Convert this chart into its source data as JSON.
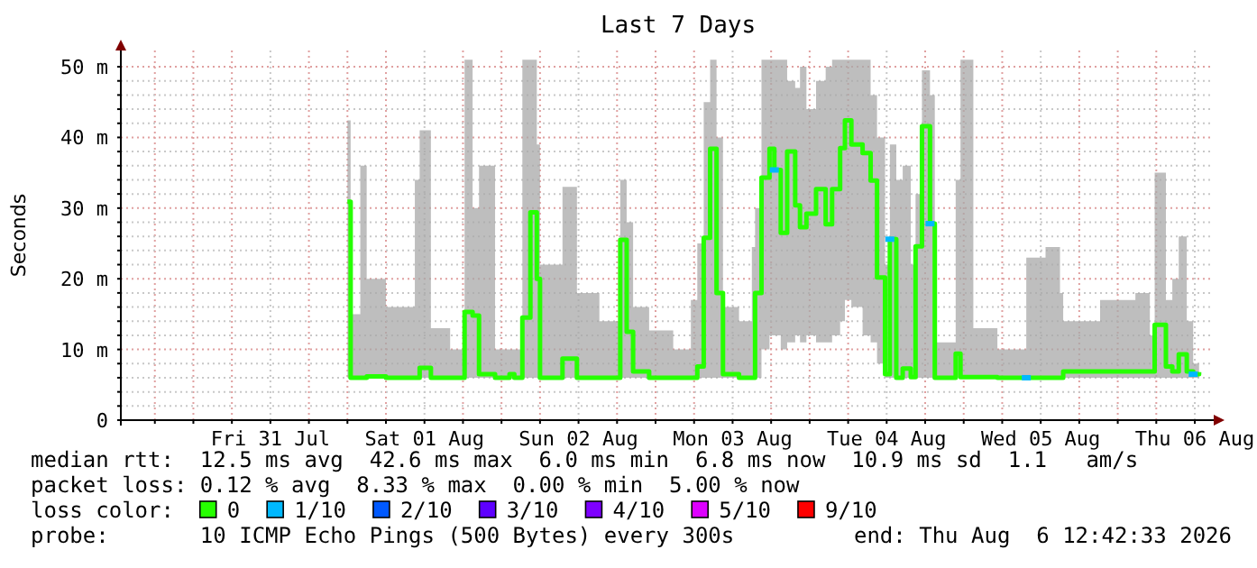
{
  "chart_data": {
    "type": "step",
    "title": "Last 7 Days",
    "ylabel": "Seconds",
    "legend_title": "loss color:",
    "legend": "bottom",
    "grid": true,
    "marker": "none",
    "xlim": [
      "2026-07-30T12:42",
      "2026-08-06T12:42"
    ],
    "xticks": [
      {
        "value": "2026-07-30T18:00",
        "label": null
      },
      {
        "value": "2026-07-31T00:00",
        "label": null
      },
      {
        "value": "2026-07-31T06:00",
        "label": null
      },
      {
        "value": "2026-07-31T12:00",
        "label": "Fri 31 Jul"
      },
      {
        "value": "2026-07-31T18:00",
        "label": null
      },
      {
        "value": "2026-08-01T00:00",
        "label": null
      },
      {
        "value": "2026-08-01T06:00",
        "label": null
      },
      {
        "value": "2026-08-01T12:00",
        "label": "Sat 01 Aug"
      },
      {
        "value": "2026-08-01T18:00",
        "label": null
      },
      {
        "value": "2026-08-02T00:00",
        "label": null
      },
      {
        "value": "2026-08-02T06:00",
        "label": null
      },
      {
        "value": "2026-08-02T12:00",
        "label": "Sun 02 Aug"
      },
      {
        "value": "2026-08-02T18:00",
        "label": null
      },
      {
        "value": "2026-08-03T00:00",
        "label": null
      },
      {
        "value": "2026-08-03T06:00",
        "label": null
      },
      {
        "value": "2026-08-03T12:00",
        "label": "Mon 03 Aug"
      },
      {
        "value": "2026-08-03T18:00",
        "label": null
      },
      {
        "value": "2026-08-04T00:00",
        "label": null
      },
      {
        "value": "2026-08-04T06:00",
        "label": null
      },
      {
        "value": "2026-08-04T12:00",
        "label": "Tue 04 Aug"
      },
      {
        "value": "2026-08-04T18:00",
        "label": null
      },
      {
        "value": "2026-08-05T00:00",
        "label": null
      },
      {
        "value": "2026-08-05T06:00",
        "label": null
      },
      {
        "value": "2026-08-05T12:00",
        "label": "Wed 05 Aug"
      },
      {
        "value": "2026-08-05T18:00",
        "label": null
      },
      {
        "value": "2026-08-06T00:00",
        "label": null
      },
      {
        "value": "2026-08-06T06:00",
        "label": null
      },
      {
        "value": "2026-08-06T12:00",
        "label": "Thu 06 Aug"
      }
    ],
    "ylim": [
      0,
      52.3
    ],
    "yticks": [
      0,
      {
        "value": 2,
        "label": null
      },
      {
        "value": 4,
        "label": null
      },
      {
        "value": 6,
        "label": null
      },
      {
        "value": 8,
        "label": null
      },
      {
        "value": 10,
        "label": "10 m"
      },
      {
        "value": 12,
        "label": null
      },
      {
        "value": 14,
        "label": null
      },
      {
        "value": 16,
        "label": null
      },
      {
        "value": 18,
        "label": null
      },
      {
        "value": 20,
        "label": "20 m"
      },
      {
        "value": 22,
        "label": null
      },
      {
        "value": 24,
        "label": null
      },
      {
        "value": 26,
        "label": null
      },
      {
        "value": 28,
        "label": null
      },
      {
        "value": 30,
        "label": "30 m"
      },
      {
        "value": 32,
        "label": null
      },
      {
        "value": 34,
        "label": null
      },
      {
        "value": 36,
        "label": null
      },
      {
        "value": 38,
        "label": null
      },
      {
        "value": 40,
        "label": "40 m"
      },
      {
        "value": 42,
        "label": null
      },
      {
        "value": 44,
        "label": null
      },
      {
        "value": 46,
        "label": null
      },
      {
        "value": 48,
        "label": null
      },
      {
        "value": 50,
        "label": "50 m"
      }
    ],
    "series": [
      {
        "name": "0",
        "color": "#26ff00",
        "x": [
          "2026-08-01T00:00",
          "2026-08-01T00:30",
          "2026-08-01T02:00",
          "2026-08-01T03:00",
          "2026-08-01T06:00",
          "2026-08-01T10:30",
          "2026-08-01T11:15",
          "2026-08-01T13:00",
          "2026-08-01T16:00",
          "2026-08-01T18:15",
          "2026-08-01T19:30",
          "2026-08-01T20:30",
          "2026-08-01T23:00",
          "2026-08-02T01:15",
          "2026-08-02T02:00",
          "2026-08-02T03:15",
          "2026-08-02T04:30",
          "2026-08-02T05:30",
          "2026-08-02T06:00",
          "2026-08-02T09:30",
          "2026-08-02T11:45",
          "2026-08-02T15:15",
          "2026-08-02T18:30",
          "2026-08-02T19:30",
          "2026-08-02T20:30",
          "2026-08-02T23:00",
          "2026-08-03T02:45",
          "2026-08-03T05:30",
          "2026-08-03T06:30",
          "2026-08-03T07:30",
          "2026-08-03T08:30",
          "2026-08-03T09:30",
          "2026-08-03T10:30",
          "2026-08-03T13:00",
          "2026-08-03T15:00",
          "2026-08-03T15:30",
          "2026-08-03T16:30",
          "2026-08-03T17:45",
          "2026-08-03T18:30",
          "2026-08-03T19:30",
          "2026-08-03T20:30",
          "2026-08-03T21:45",
          "2026-08-03T22:30",
          "2026-08-03T23:30",
          "2026-08-04T01:00",
          "2026-08-04T02:30",
          "2026-08-04T03:30",
          "2026-08-04T04:45",
          "2026-08-04T05:30",
          "2026-08-04T06:30",
          "2026-08-04T08:15",
          "2026-08-04T09:30",
          "2026-08-04T10:30",
          "2026-08-04T11:45",
          "2026-08-04T12:30",
          "2026-08-04T13:30",
          "2026-08-04T14:30",
          "2026-08-04T15:45",
          "2026-08-04T16:30",
          "2026-08-04T17:30",
          "2026-08-04T18:45",
          "2026-08-04T19:30",
          "2026-08-04T21:45",
          "2026-08-04T22:45",
          "2026-08-04T23:30",
          "2026-08-05T01:30",
          "2026-08-05T05:15",
          "2026-08-05T09:45",
          "2026-08-05T12:45",
          "2026-08-05T15:00",
          "2026-08-05T15:30",
          "2026-08-05T21:15",
          "2026-08-06T02:45",
          "2026-08-06T05:00",
          "2026-08-06T05:45",
          "2026-08-06T07:30",
          "2026-08-06T08:30",
          "2026-08-06T09:30",
          "2026-08-06T10:45",
          "2026-08-06T11:45",
          "2026-08-06T12:40"
        ],
        "values": [
          30.9,
          6,
          6,
          6.2,
          6,
          6,
          7.4,
          6,
          6,
          15.3,
          14.8,
          6.5,
          6,
          6.5,
          6,
          14.5,
          29.4,
          20,
          6,
          8.7,
          6,
          6,
          25.5,
          12.5,
          6.9,
          6,
          6,
          6,
          7.6,
          25.8,
          38.4,
          18,
          6.5,
          6,
          6,
          18,
          34.3,
          38.4,
          35.4,
          26.5,
          38,
          30.4,
          27.3,
          29.2,
          32.7,
          27.7,
          32.7,
          38.5,
          42.4,
          39,
          37.8,
          33.9,
          20.2,
          6.5,
          25.6,
          6,
          7.3,
          6.1,
          24.6,
          41.6,
          27.8,
          6,
          6,
          9.4,
          6.1,
          6.1,
          6,
          6,
          6,
          6,
          6.9,
          6.9,
          6.9,
          6.9,
          13.5,
          7.6,
          6.9,
          9.3,
          6.9,
          6.5,
          6.8
        ],
        "lower": [
          6,
          6,
          6,
          6,
          6,
          6,
          6,
          6,
          6,
          6,
          6,
          6,
          6,
          6,
          6,
          6,
          6,
          6,
          6,
          6,
          6,
          6,
          6,
          6,
          6,
          6,
          6,
          6,
          6,
          6,
          6,
          6,
          6,
          6,
          6,
          6,
          10,
          12,
          12,
          10,
          11,
          12,
          11,
          12,
          11,
          11,
          12,
          14,
          17,
          16,
          12,
          11,
          8,
          6,
          6,
          6,
          6,
          6,
          6,
          6,
          6,
          6,
          6,
          6,
          6,
          6,
          6,
          6,
          6,
          6,
          6,
          6,
          6,
          6,
          6,
          6,
          6,
          6,
          6,
          6,
          6
        ],
        "upper": [
          42.4,
          15,
          36,
          20,
          16,
          34,
          41,
          13,
          10,
          51,
          30,
          36,
          10,
          10,
          10,
          51,
          51,
          39,
          22,
          33,
          18,
          14,
          34,
          28,
          16,
          12.7,
          10,
          17,
          25,
          45,
          51,
          40,
          16,
          14,
          24.5,
          30,
          51,
          51,
          51,
          51,
          48,
          47,
          50,
          44,
          48,
          50,
          51,
          51,
          51,
          51,
          51,
          46,
          40,
          22,
          39,
          34,
          36,
          22,
          32,
          49.5,
          46,
          11,
          11,
          34,
          51,
          13,
          10,
          23,
          24.5,
          18,
          14,
          17,
          18,
          12,
          35,
          17,
          20,
          26,
          14,
          8,
          8
        ]
      },
      {
        "name": "1/10",
        "type": "scatter",
        "color": "#00b8ff",
        "marker": "square",
        "x": [
          "2026-08-03T18:30",
          "2026-08-04T12:30",
          "2026-08-04T18:45",
          "2026-08-05T09:45",
          "2026-08-06T11:45"
        ],
        "values": [
          35.4,
          25.6,
          27.8,
          6,
          6.5
        ]
      },
      {
        "name": "2/10",
        "type": "scatter",
        "color": "#0059ff"
      },
      {
        "name": "3/10",
        "type": "scatter",
        "color": "#5e00ff"
      },
      {
        "name": "4/10",
        "type": "scatter",
        "color": "#7e00ff"
      },
      {
        "name": "5/10",
        "type": "scatter",
        "color": "#dd00ff"
      },
      {
        "name": "9/10",
        "type": "scatter",
        "color": "#ff0000"
      }
    ],
    "annotations": [
      "median rtt:  12.5 ms avg  42.6 ms max  6.0 ms min  6.8 ms now  10.9 ms sd  1.1   am/s",
      "packet loss: 0.12 % avg  8.33 % max  0.00 % min  5.00 % now",
      "probe:       10 ICMP Echo Pings (500 Bytes) every 300s",
      "end: Thu Aug  6 12:42:33 2026"
    ]
  }
}
